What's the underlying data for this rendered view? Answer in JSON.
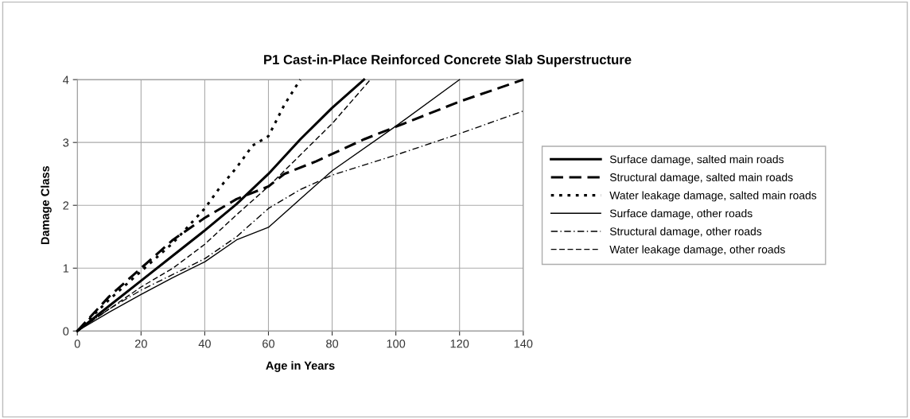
{
  "chart_data": {
    "type": "line",
    "title": "P1 Cast-in-Place Reinforced Concrete Slab Superstructure",
    "xlabel": "Age in Years",
    "ylabel": "Damage Class",
    "xlim": [
      0,
      140
    ],
    "xticks": [
      0,
      20,
      40,
      60,
      80,
      100,
      120,
      140
    ],
    "ylim": [
      0,
      4
    ],
    "yticks": [
      0,
      1,
      2,
      3,
      4
    ],
    "grid": true,
    "legend": "right",
    "marker": "none",
    "series": [
      {
        "name": "Surface damage, salted main roads",
        "color": "#000000",
        "line_style": "solid",
        "x": [
          0,
          10,
          20,
          30,
          40,
          50,
          60,
          70,
          80,
          90
        ],
        "values": [
          0,
          0.4,
          0.8,
          1.2,
          1.6,
          2.02,
          2.5,
          3.05,
          3.55,
          4.0
        ]
      },
      {
        "name": "Structural damage, salted main roads",
        "color": "#000000",
        "line_style": "dashed",
        "x": [
          0,
          10,
          20,
          30,
          40,
          50,
          60,
          65,
          75,
          90,
          100,
          120,
          140
        ],
        "values": [
          0,
          0.55,
          1.0,
          1.45,
          1.8,
          2.1,
          2.3,
          2.5,
          2.7,
          3.05,
          3.25,
          3.65,
          4.0
        ]
      },
      {
        "name": "Water leakage damage, salted main roads",
        "color": "#000000",
        "line_style": "dotted",
        "x": [
          0,
          10,
          20,
          30,
          40,
          45,
          50,
          55,
          60,
          65,
          70
        ],
        "values": [
          0,
          0.5,
          0.95,
          1.4,
          1.95,
          2.3,
          2.6,
          2.95,
          3.1,
          3.6,
          4.0
        ]
      },
      {
        "name": "Surface damage, other roads",
        "color": "#000000",
        "line_style": "solid",
        "x": [
          0,
          10,
          20,
          30,
          40,
          50,
          60,
          70,
          80,
          100,
          120
        ],
        "values": [
          0,
          0.3,
          0.58,
          0.85,
          1.1,
          1.45,
          1.65,
          2.1,
          2.55,
          3.26,
          4.0
        ]
      },
      {
        "name": "Structural damage, other roads",
        "color": "#000000",
        "line_style": "dashdot",
        "x": [
          0,
          10,
          20,
          30,
          40,
          50,
          60,
          70,
          80,
          100,
          120,
          140
        ],
        "values": [
          0,
          0.35,
          0.65,
          0.9,
          1.15,
          1.5,
          1.95,
          2.25,
          2.48,
          2.8,
          3.14,
          3.5
        ]
      },
      {
        "name": "Water leakage damage, other roads",
        "color": "#000000",
        "line_style": "dashed",
        "x": [
          0,
          10,
          20,
          30,
          40,
          50,
          60,
          70,
          80,
          92
        ],
        "values": [
          0,
          0.35,
          0.7,
          1.0,
          1.38,
          1.85,
          2.3,
          2.8,
          3.3,
          4.0
        ]
      }
    ]
  }
}
